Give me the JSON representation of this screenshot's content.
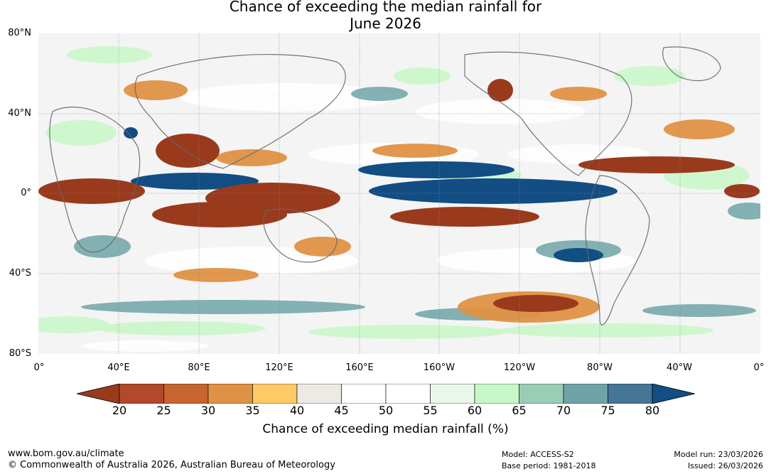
{
  "title": {
    "line1": "Chance of exceeding the median rainfall for",
    "line2": "June 2026"
  },
  "map": {
    "lat_labels": [
      "80°N",
      "40°N",
      "0°",
      "40°S",
      "80°S"
    ],
    "lon_labels": [
      "0°",
      "40°E",
      "80°E",
      "120°E",
      "160°E",
      "160°W",
      "120°W",
      "80°W",
      "40°W",
      "0°"
    ]
  },
  "colorbar": {
    "ticks": [
      "20",
      "25",
      "30",
      "35",
      "40",
      "45",
      "50",
      "55",
      "60",
      "65",
      "70",
      "75",
      "80"
    ],
    "colors": [
      "#9a3a1d",
      "#b1492a",
      "#c8642f",
      "#df9145",
      "#fdca67",
      "#ebeae5",
      "#ffffff",
      "#ffffff",
      "#eaf6ea",
      "#c8f7c7",
      "#99cdb6",
      "#6fa3a7",
      "#457597",
      "#124d84"
    ],
    "label": "Chance of exceeding median rainfall (%)"
  },
  "footer": {
    "url": "www.bom.gov.au/climate",
    "copyright": "© Commonwealth of Australia 2026, Australian Bureau of Meteorology",
    "model": "Model: ACCESS-S2",
    "base_period": "Base period: 1981-2018",
    "model_run": "Model run: 23/03/2026",
    "issued": "Issued: 26/03/2026"
  }
}
